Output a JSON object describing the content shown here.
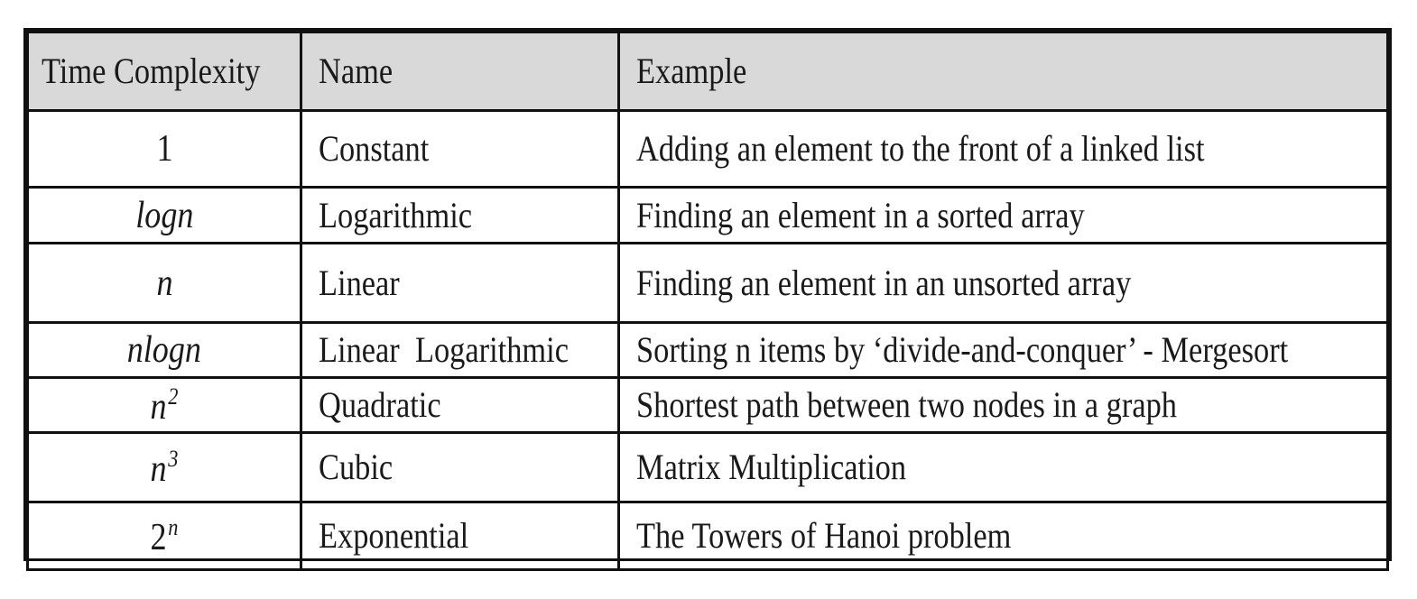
{
  "table": {
    "headers": [
      "Time Complexity",
      "Name",
      "Example"
    ],
    "rows": [
      {
        "complexity_base": "1",
        "complexity_exp": "",
        "name": "Constant",
        "example": "Adding an element to the front of a linked list"
      },
      {
        "complexity_base": "logn",
        "complexity_exp": "",
        "name": "Logarithmic",
        "example": "Finding an element in a sorted array"
      },
      {
        "complexity_base": "n",
        "complexity_exp": "",
        "name": "Linear",
        "example": "Finding an element in an unsorted array"
      },
      {
        "complexity_base": "nlogn",
        "complexity_exp": "",
        "name": "Linear  Logarithmic",
        "example": "Sorting n items by ‘divide-and-conquer’ - Mergesort"
      },
      {
        "complexity_base": "n",
        "complexity_exp": "2",
        "name": "Quadratic",
        "example": "Shortest path between two nodes in a graph"
      },
      {
        "complexity_base": "n",
        "complexity_exp": "3",
        "name": "Cubic",
        "example": "Matrix Multiplication"
      },
      {
        "complexity_base": "2",
        "complexity_exp": "n",
        "name": "Exponential",
        "example": "The Towers of Hanoi problem"
      }
    ]
  }
}
